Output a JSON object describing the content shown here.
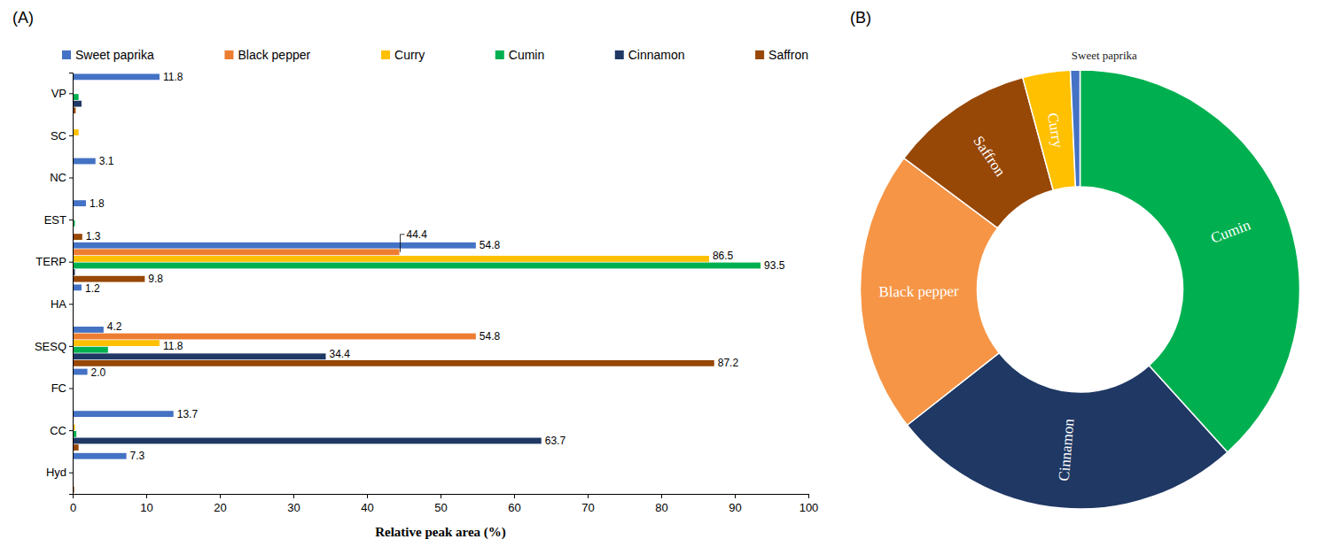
{
  "chart_data": [
    {
      "type": "bar",
      "title": "(A)",
      "orientation": "horizontal",
      "xlabel": "Relative peak area (%)",
      "categories": [
        "VP",
        "SC",
        "NC",
        "EST",
        "TERP",
        "HA",
        "SESQ",
        "FC",
        "CC",
        "Hyd"
      ],
      "series": [
        {
          "name": "Sweet paprika",
          "color": "#4472c4",
          "values": [
            11.8,
            0,
            3.1,
            1.8,
            54.8,
            1.2,
            4.2,
            2.0,
            13.7,
            7.3
          ],
          "value_labels": [
            "11.8",
            null,
            "3.1",
            "1.8",
            "54.8",
            "1.2",
            "4.2",
            "2.0",
            "13.7",
            "7.3"
          ]
        },
        {
          "name": "Black pepper",
          "color": "#ed7d31",
          "values": [
            0,
            0,
            0,
            0,
            44.4,
            0,
            54.8,
            0,
            0,
            0
          ],
          "value_labels": [
            null,
            null,
            null,
            null,
            "44.4",
            null,
            "54.8",
            null,
            null,
            null
          ]
        },
        {
          "name": "Curry",
          "color": "#ffc000",
          "values": [
            0,
            0.8,
            0,
            0,
            86.5,
            0,
            11.8,
            0,
            0.3,
            0
          ],
          "value_labels": [
            null,
            null,
            null,
            null,
            "86.5",
            null,
            "11.8",
            null,
            null,
            null
          ]
        },
        {
          "name": "Cumin",
          "color": "#00b050",
          "values": [
            0.8,
            0,
            0,
            0.3,
            93.5,
            0,
            4.8,
            0,
            0.5,
            0
          ],
          "value_labels": [
            null,
            null,
            null,
            null,
            "93.5",
            null,
            null,
            null,
            null,
            null
          ]
        },
        {
          "name": "Cinnamon",
          "color": "#1f3864",
          "values": [
            1.2,
            0,
            0,
            0,
            0.3,
            0,
            34.4,
            0,
            63.7,
            0
          ],
          "value_labels": [
            null,
            null,
            null,
            null,
            null,
            null,
            "34.4",
            null,
            "63.7",
            null
          ]
        },
        {
          "name": "Saffron",
          "color": "#974706",
          "values": [
            0.4,
            0,
            0,
            1.3,
            9.8,
            0,
            87.2,
            0,
            0.8,
            0.2
          ],
          "value_labels": [
            null,
            null,
            null,
            "1.3",
            "9.8",
            null,
            "87.2",
            null,
            null,
            null
          ]
        }
      ],
      "xlim": [
        0,
        100
      ],
      "xticks": [
        0,
        10,
        20,
        30,
        40,
        50,
        60,
        70,
        80,
        90,
        100
      ],
      "grid": false,
      "legend": "top",
      "data_labels": true
    },
    {
      "type": "pie",
      "title": "(B)",
      "categories": [
        "Cumin",
        "Cinnamon",
        "Black pepper",
        "Saffron",
        "Curry",
        "Sweet paprika"
      ],
      "values": [
        38.3,
        26.1,
        20.8,
        10.6,
        3.5,
        0.7
      ],
      "colors": [
        "#00b050",
        "#1f3864",
        "#f69546",
        "#974706",
        "#ffc000",
        "#4472c4"
      ]
    }
  ]
}
